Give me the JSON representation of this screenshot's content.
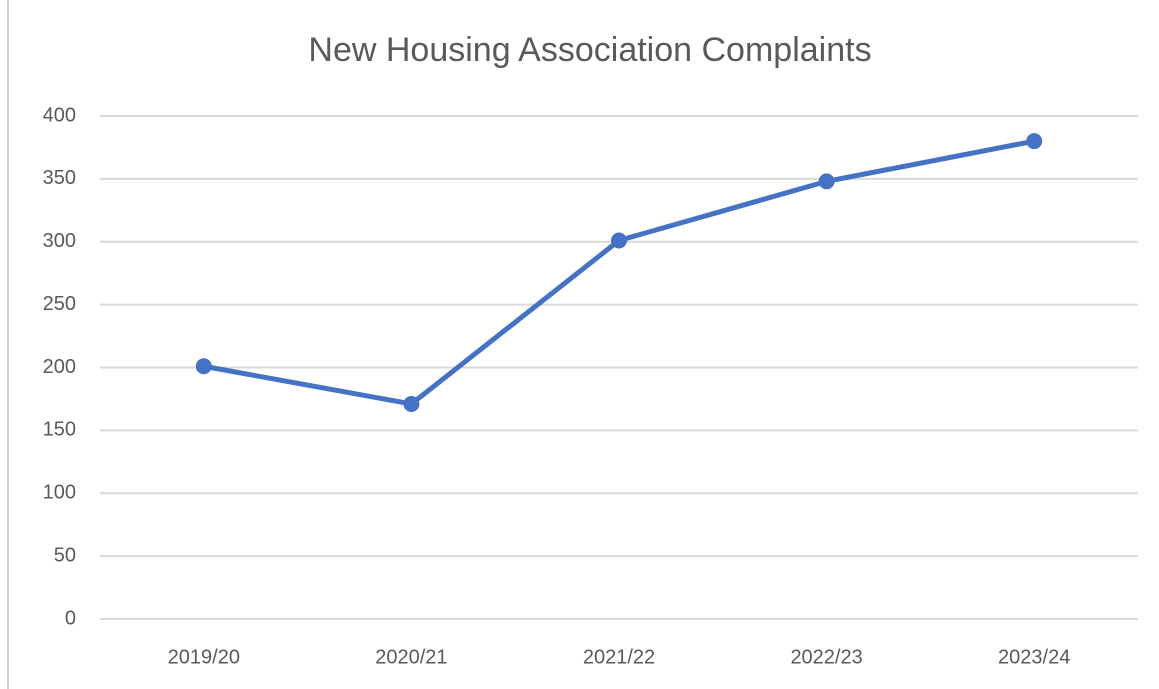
{
  "chart_data": {
    "type": "line",
    "title": "New Housing Association Complaints",
    "categories": [
      "2019/20",
      "2020/21",
      "2021/22",
      "2022/23",
      "2023/24"
    ],
    "series": [
      {
        "name": "Complaints",
        "color": "#4472c4",
        "values": [
          201,
          171,
          301,
          348,
          380
        ]
      }
    ],
    "ylim": [
      0,
      400
    ],
    "yticks": [
      0,
      50,
      100,
      150,
      200,
      250,
      300,
      350,
      400
    ],
    "grid": true,
    "legend": false
  }
}
